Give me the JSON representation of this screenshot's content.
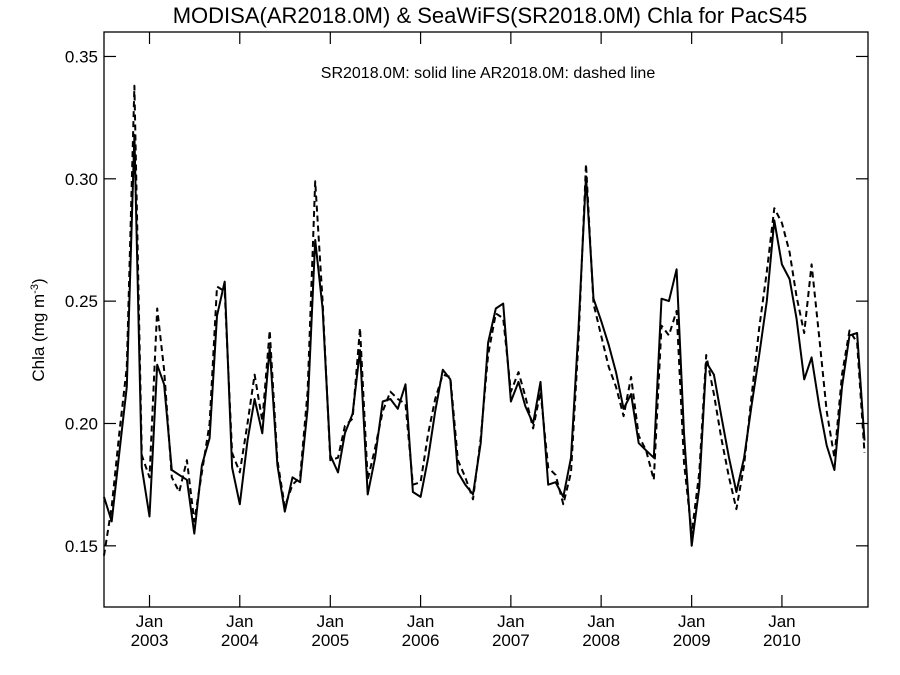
{
  "chart_data": {
    "type": "line",
    "title": "MODISA(AR2018.0M) & SeaWiFS(SR2018.0M)  Chla for PacS45",
    "annotation": "SR2018.0M: solid line   AR2018.0M: dashed line",
    "ylabel": "Chla (mg m",
    "ylabel_superscript": "-3",
    "ylabel_suffix": ")",
    "ylim": [
      0.125,
      0.36
    ],
    "xlim": [
      "2002-07-01",
      "2010-12-15"
    ],
    "yticks": [
      0.15,
      0.2,
      0.25,
      0.3,
      0.35
    ],
    "ytick_labels": [
      "0.15",
      "0.20",
      "0.25",
      "0.30",
      "0.35"
    ],
    "xticks": [
      {
        "top": "Jan",
        "bottom": "2003",
        "date": "2003-01-01"
      },
      {
        "top": "Jan",
        "bottom": "2004",
        "date": "2004-01-01"
      },
      {
        "top": "Jan",
        "bottom": "2005",
        "date": "2005-01-01"
      },
      {
        "top": "Jan",
        "bottom": "2006",
        "date": "2006-01-01"
      },
      {
        "top": "Jan",
        "bottom": "2007",
        "date": "2007-01-01"
      },
      {
        "top": "Jan",
        "bottom": "2008",
        "date": "2008-01-01"
      },
      {
        "top": "Jan",
        "bottom": "2009",
        "date": "2009-01-01"
      },
      {
        "top": "Jan",
        "bottom": "2010",
        "date": "2010-01-01"
      }
    ],
    "series": [
      {
        "name": "SR2018.0M",
        "style": "solid",
        "color": "#000000",
        "points": [
          [
            "2002-07-01",
            0.17
          ],
          [
            "2002-08-01",
            0.16
          ],
          [
            "2002-09-01",
            0.188
          ],
          [
            "2002-10-01",
            0.215
          ],
          [
            "2002-11-01",
            0.318
          ],
          [
            "2002-12-01",
            0.182
          ],
          [
            "2003-01-01",
            0.162
          ],
          [
            "2003-02-01",
            0.224
          ],
          [
            "2003-03-01",
            0.216
          ],
          [
            "2003-04-01",
            0.181
          ],
          [
            "2003-05-01",
            0.179
          ],
          [
            "2003-06-01",
            0.177
          ],
          [
            "2003-07-01",
            0.155
          ],
          [
            "2003-08-01",
            0.183
          ],
          [
            "2003-09-01",
            0.194
          ],
          [
            "2003-10-01",
            0.244
          ],
          [
            "2003-11-01",
            0.258
          ],
          [
            "2003-12-01",
            0.182
          ],
          [
            "2004-01-01",
            0.167
          ],
          [
            "2004-02-01",
            0.193
          ],
          [
            "2004-03-01",
            0.21
          ],
          [
            "2004-04-01",
            0.196
          ],
          [
            "2004-05-01",
            0.231
          ],
          [
            "2004-06-01",
            0.183
          ],
          [
            "2004-07-01",
            0.164
          ],
          [
            "2004-08-01",
            0.178
          ],
          [
            "2004-09-01",
            0.176
          ],
          [
            "2004-10-01",
            0.206
          ],
          [
            "2004-11-01",
            0.275
          ],
          [
            "2004-12-01",
            0.247
          ],
          [
            "2005-01-01",
            0.187
          ],
          [
            "2005-02-01",
            0.18
          ],
          [
            "2005-03-01",
            0.196
          ],
          [
            "2005-04-01",
            0.204
          ],
          [
            "2005-05-01",
            0.23
          ],
          [
            "2005-06-01",
            0.171
          ],
          [
            "2005-07-01",
            0.186
          ],
          [
            "2005-08-01",
            0.209
          ],
          [
            "2005-09-01",
            0.21
          ],
          [
            "2005-10-01",
            0.206
          ],
          [
            "2005-11-01",
            0.216
          ],
          [
            "2005-12-01",
            0.172
          ],
          [
            "2006-01-01",
            0.17
          ],
          [
            "2006-02-01",
            0.186
          ],
          [
            "2006-03-01",
            0.205
          ],
          [
            "2006-04-01",
            0.222
          ],
          [
            "2006-05-01",
            0.218
          ],
          [
            "2006-06-01",
            0.18
          ],
          [
            "2006-07-01",
            0.175
          ],
          [
            "2006-08-01",
            0.171
          ],
          [
            "2006-09-01",
            0.192
          ],
          [
            "2006-10-01",
            0.233
          ],
          [
            "2006-11-01",
            0.247
          ],
          [
            "2006-12-01",
            0.249
          ],
          [
            "2007-01-01",
            0.209
          ],
          [
            "2007-02-01",
            0.217
          ],
          [
            "2007-03-01",
            0.207
          ],
          [
            "2007-04-01",
            0.2
          ],
          [
            "2007-05-01",
            0.217
          ],
          [
            "2007-06-01",
            0.175
          ],
          [
            "2007-07-01",
            0.176
          ],
          [
            "2007-08-01",
            0.17
          ],
          [
            "2007-09-01",
            0.186
          ],
          [
            "2007-10-01",
            0.238
          ],
          [
            "2007-11-01",
            0.301
          ],
          [
            "2007-12-01",
            0.251
          ],
          [
            "2008-01-01",
            0.242
          ],
          [
            "2008-02-01",
            0.232
          ],
          [
            "2008-03-01",
            0.221
          ],
          [
            "2008-04-01",
            0.206
          ],
          [
            "2008-05-01",
            0.212
          ],
          [
            "2008-06-01",
            0.192
          ],
          [
            "2008-07-01",
            0.189
          ],
          [
            "2008-08-01",
            0.186
          ],
          [
            "2008-09-01",
            0.251
          ],
          [
            "2008-10-01",
            0.25
          ],
          [
            "2008-11-01",
            0.263
          ],
          [
            "2008-12-01",
            0.196
          ],
          [
            "2009-01-01",
            0.15
          ],
          [
            "2009-02-01",
            0.174
          ],
          [
            "2009-03-01",
            0.225
          ],
          [
            "2009-04-01",
            0.22
          ],
          [
            "2009-05-01",
            0.203
          ],
          [
            "2009-06-01",
            0.186
          ],
          [
            "2009-07-01",
            0.172
          ],
          [
            "2009-08-01",
            0.186
          ],
          [
            "2009-09-01",
            0.208
          ],
          [
            "2009-10-01",
            0.228
          ],
          [
            "2009-11-01",
            0.25
          ],
          [
            "2009-12-01",
            0.283
          ],
          [
            "2010-01-01",
            0.265
          ],
          [
            "2010-02-01",
            0.259
          ],
          [
            "2010-03-01",
            0.243
          ],
          [
            "2010-04-01",
            0.218
          ],
          [
            "2010-05-01",
            0.227
          ],
          [
            "2010-06-01",
            0.207
          ],
          [
            "2010-07-01",
            0.191
          ],
          [
            "2010-08-01",
            0.181
          ],
          [
            "2010-09-01",
            0.215
          ],
          [
            "2010-10-01",
            0.236
          ],
          [
            "2010-11-01",
            0.237
          ],
          [
            "2010-12-01",
            0.193
          ]
        ]
      },
      {
        "name": "AR2018.0M",
        "style": "dashed",
        "color": "#000000",
        "points": [
          [
            "2002-07-01",
            0.146
          ],
          [
            "2002-08-01",
            0.166
          ],
          [
            "2002-09-01",
            0.196
          ],
          [
            "2002-10-01",
            0.223
          ],
          [
            "2002-11-01",
            0.338
          ],
          [
            "2002-12-01",
            0.187
          ],
          [
            "2003-01-01",
            0.178
          ],
          [
            "2003-02-01",
            0.247
          ],
          [
            "2003-03-01",
            0.222
          ],
          [
            "2003-04-01",
            0.178
          ],
          [
            "2003-05-01",
            0.172
          ],
          [
            "2003-06-01",
            0.185
          ],
          [
            "2003-07-01",
            0.16
          ],
          [
            "2003-08-01",
            0.18
          ],
          [
            "2003-09-01",
            0.2
          ],
          [
            "2003-10-01",
            0.256
          ],
          [
            "2003-11-01",
            0.254
          ],
          [
            "2003-12-01",
            0.188
          ],
          [
            "2004-01-01",
            0.18
          ],
          [
            "2004-02-01",
            0.2
          ],
          [
            "2004-03-01",
            0.22
          ],
          [
            "2004-04-01",
            0.201
          ],
          [
            "2004-05-01",
            0.238
          ],
          [
            "2004-06-01",
            0.185
          ],
          [
            "2004-07-01",
            0.166
          ],
          [
            "2004-08-01",
            0.175
          ],
          [
            "2004-09-01",
            0.178
          ],
          [
            "2004-10-01",
            0.213
          ],
          [
            "2004-11-01",
            0.299
          ],
          [
            "2004-12-01",
            0.25
          ],
          [
            "2005-01-01",
            0.185
          ],
          [
            "2005-02-01",
            0.186
          ],
          [
            "2005-03-01",
            0.199
          ],
          [
            "2005-04-01",
            0.202
          ],
          [
            "2005-05-01",
            0.239
          ],
          [
            "2005-06-01",
            0.177
          ],
          [
            "2005-07-01",
            0.19
          ],
          [
            "2005-08-01",
            0.205
          ],
          [
            "2005-09-01",
            0.213
          ],
          [
            "2005-10-01",
            0.21
          ],
          [
            "2005-11-01",
            0.208
          ],
          [
            "2005-12-01",
            0.175
          ],
          [
            "2006-01-01",
            0.176
          ],
          [
            "2006-02-01",
            0.196
          ],
          [
            "2006-03-01",
            0.21
          ],
          [
            "2006-04-01",
            0.22
          ],
          [
            "2006-05-01",
            0.219
          ],
          [
            "2006-06-01",
            0.185
          ],
          [
            "2006-07-01",
            0.178
          ],
          [
            "2006-08-01",
            0.169
          ],
          [
            "2006-09-01",
            0.194
          ],
          [
            "2006-10-01",
            0.228
          ],
          [
            "2006-11-01",
            0.245
          ],
          [
            "2006-12-01",
            0.243
          ],
          [
            "2007-01-01",
            0.213
          ],
          [
            "2007-02-01",
            0.221
          ],
          [
            "2007-03-01",
            0.211
          ],
          [
            "2007-04-01",
            0.198
          ],
          [
            "2007-05-01",
            0.213
          ],
          [
            "2007-06-01",
            0.182
          ],
          [
            "2007-07-01",
            0.179
          ],
          [
            "2007-08-01",
            0.167
          ],
          [
            "2007-09-01",
            0.18
          ],
          [
            "2007-10-01",
            0.233
          ],
          [
            "2007-11-01",
            0.306
          ],
          [
            "2007-12-01",
            0.249
          ],
          [
            "2008-01-01",
            0.236
          ],
          [
            "2008-02-01",
            0.223
          ],
          [
            "2008-03-01",
            0.215
          ],
          [
            "2008-04-01",
            0.203
          ],
          [
            "2008-05-01",
            0.219
          ],
          [
            "2008-06-01",
            0.195
          ],
          [
            "2008-07-01",
            0.189
          ],
          [
            "2008-08-01",
            0.177
          ],
          [
            "2008-09-01",
            0.24
          ],
          [
            "2008-10-01",
            0.236
          ],
          [
            "2008-11-01",
            0.246
          ],
          [
            "2008-12-01",
            0.184
          ],
          [
            "2009-01-01",
            0.155
          ],
          [
            "2009-02-01",
            0.18
          ],
          [
            "2009-03-01",
            0.228
          ],
          [
            "2009-04-01",
            0.212
          ],
          [
            "2009-05-01",
            0.194
          ],
          [
            "2009-06-01",
            0.178
          ],
          [
            "2009-07-01",
            0.165
          ],
          [
            "2009-08-01",
            0.183
          ],
          [
            "2009-09-01",
            0.212
          ],
          [
            "2009-10-01",
            0.239
          ],
          [
            "2009-11-01",
            0.262
          ],
          [
            "2009-12-01",
            0.288
          ],
          [
            "2010-01-01",
            0.282
          ],
          [
            "2010-02-01",
            0.27
          ],
          [
            "2010-03-01",
            0.252
          ],
          [
            "2010-04-01",
            0.237
          ],
          [
            "2010-05-01",
            0.265
          ],
          [
            "2010-06-01",
            0.235
          ],
          [
            "2010-07-01",
            0.205
          ],
          [
            "2010-08-01",
            0.186
          ],
          [
            "2010-09-01",
            0.22
          ],
          [
            "2010-10-01",
            0.238
          ],
          [
            "2010-11-01",
            0.233
          ],
          [
            "2010-12-01",
            0.188
          ]
        ]
      }
    ],
    "grid": false,
    "legend": "none"
  }
}
